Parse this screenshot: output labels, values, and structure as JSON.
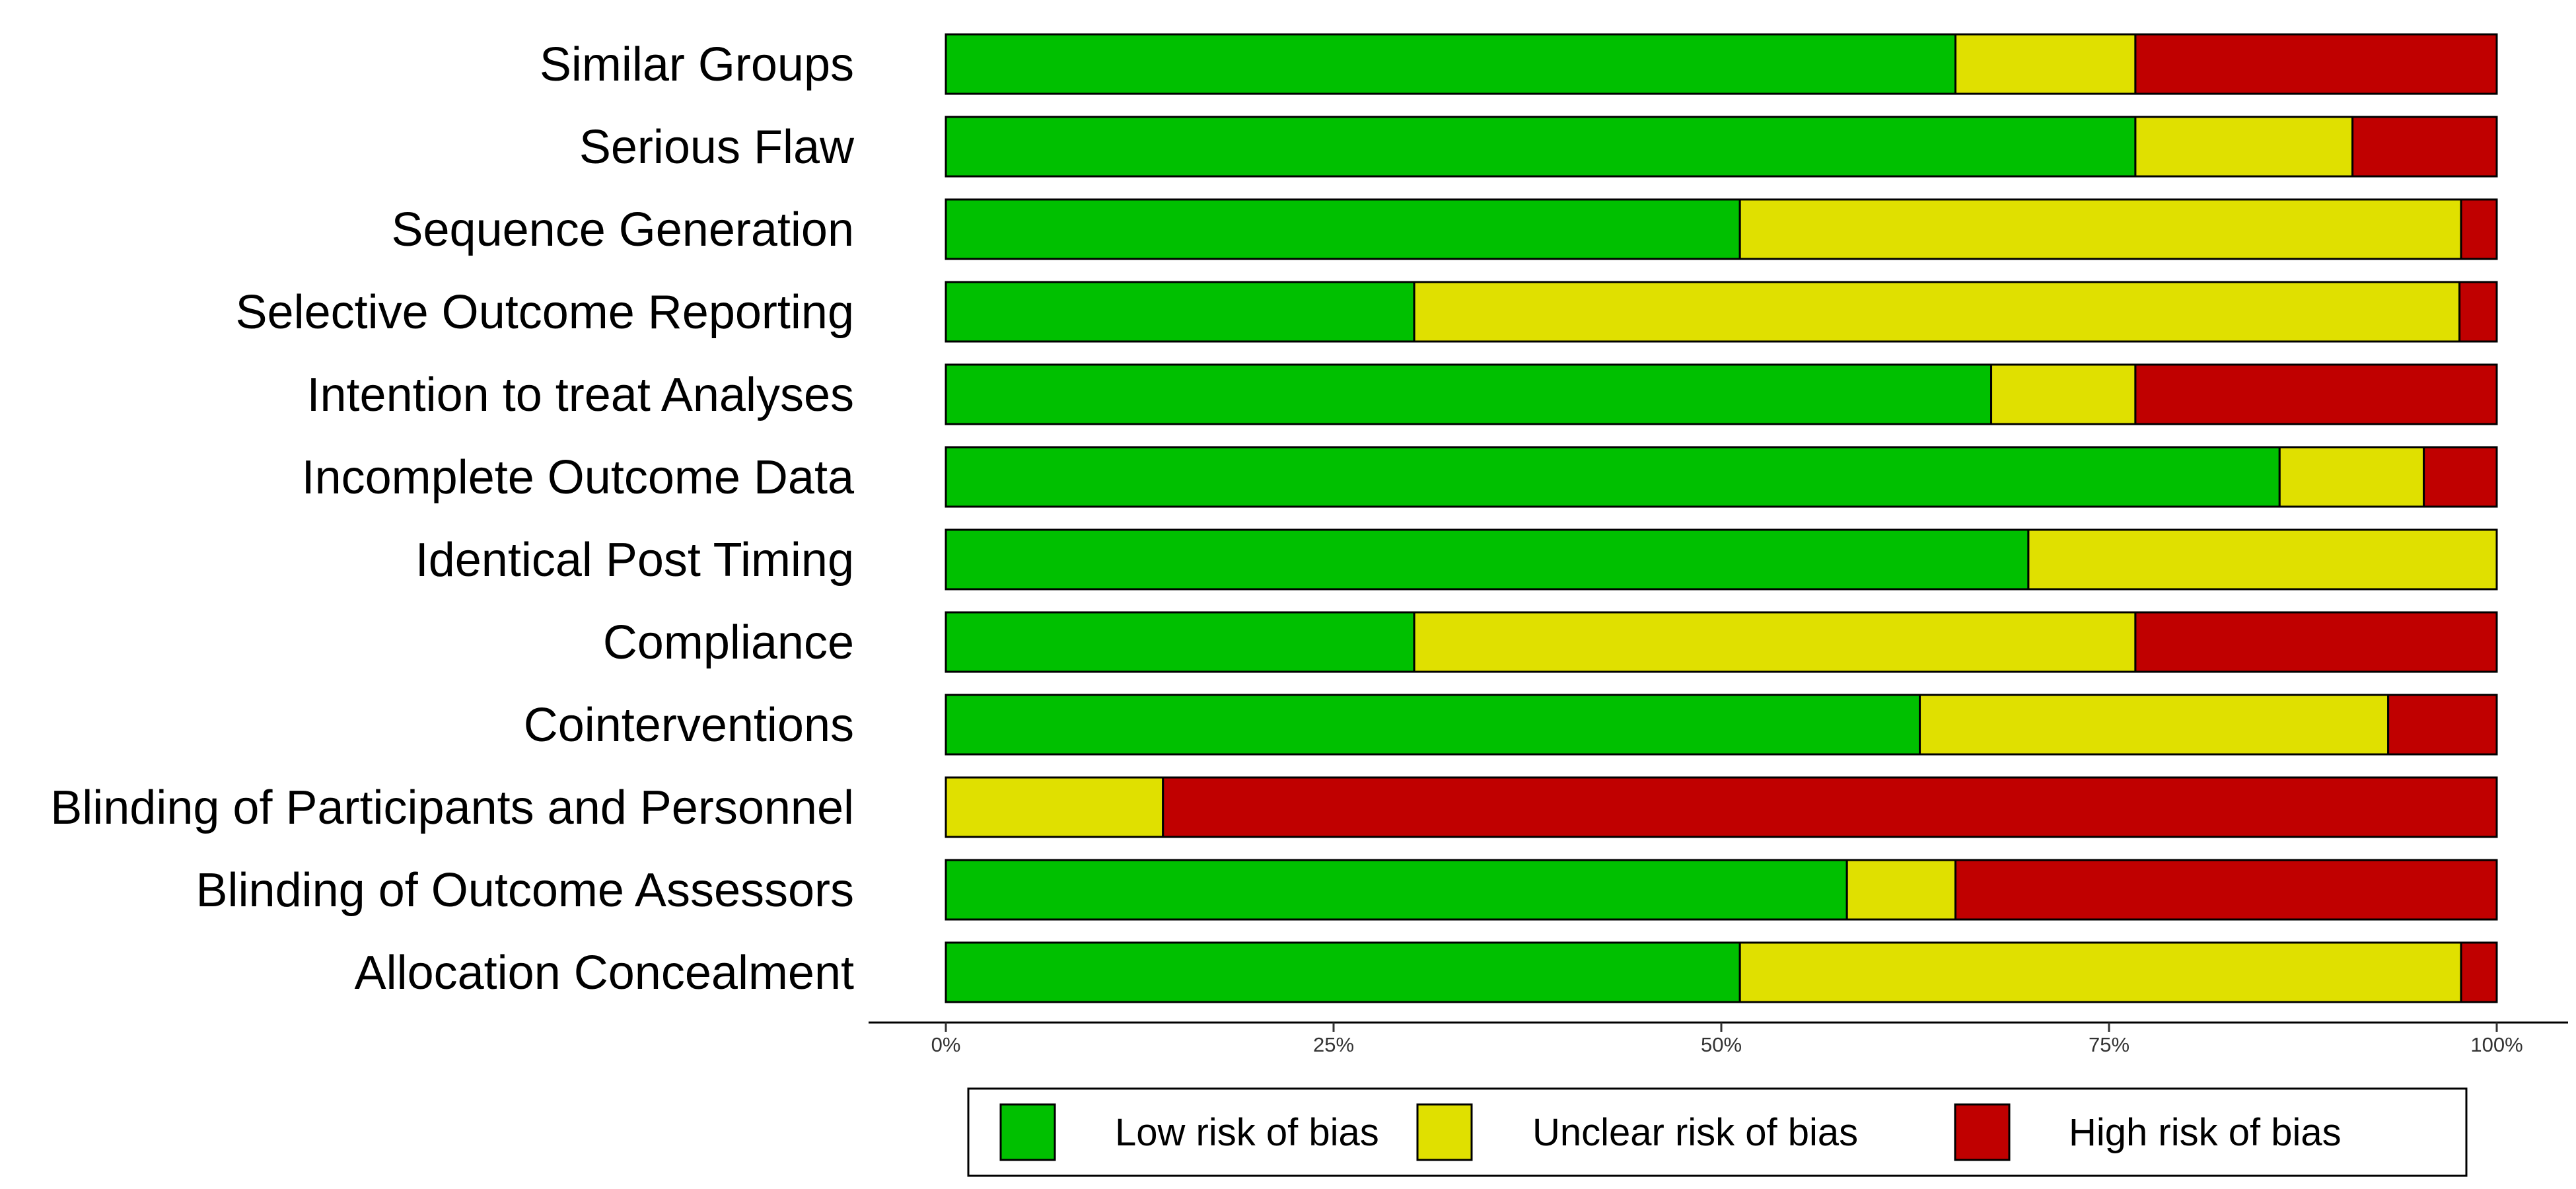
{
  "chart_data": {
    "type": "bar",
    "orientation": "horizontal",
    "stacked": true,
    "normalized": true,
    "categories": [
      "Similar Groups",
      "Serious Flaw",
      "Sequence Generation",
      "Selective Outcome Reporting",
      "Intention to treat Analyses",
      "Incomplete Outcome Data",
      "Identical Post Timing",
      "Compliance",
      "Cointerventions",
      "Blinding of Participants and Personnel",
      "Blinding of Outcome Assessors",
      "Allocation Concealment "
    ],
    "series": [
      {
        "name": "Low risk of bias",
        "color": "#00C000",
        "values": [
          65.1,
          76.7,
          51.2,
          30.2,
          67.4,
          86.0,
          69.8,
          30.2,
          62.8,
          0,
          58.1,
          51.2
        ]
      },
      {
        "name": "Unclear risk of bias",
        "color": "#E0E000",
        "values": [
          11.6,
          14.0,
          46.5,
          67.4,
          9.3,
          9.3,
          30.2,
          46.5,
          30.2,
          14.0,
          7.0,
          46.5
        ]
      },
      {
        "name": "High risk of bias",
        "color": "#C00000",
        "values": [
          23.3,
          9.3,
          2.3,
          2.4,
          23.3,
          4.7,
          0,
          23.3,
          7.0,
          86.0,
          34.9,
          2.3
        ]
      }
    ],
    "x_ticks": [
      "0%",
      "25%",
      "50%",
      "75%",
      "100%"
    ],
    "xlim": [
      0,
      100
    ],
    "title": "",
    "xlabel": "",
    "ylabel": "",
    "grid": false,
    "legend_position": "bottom"
  }
}
